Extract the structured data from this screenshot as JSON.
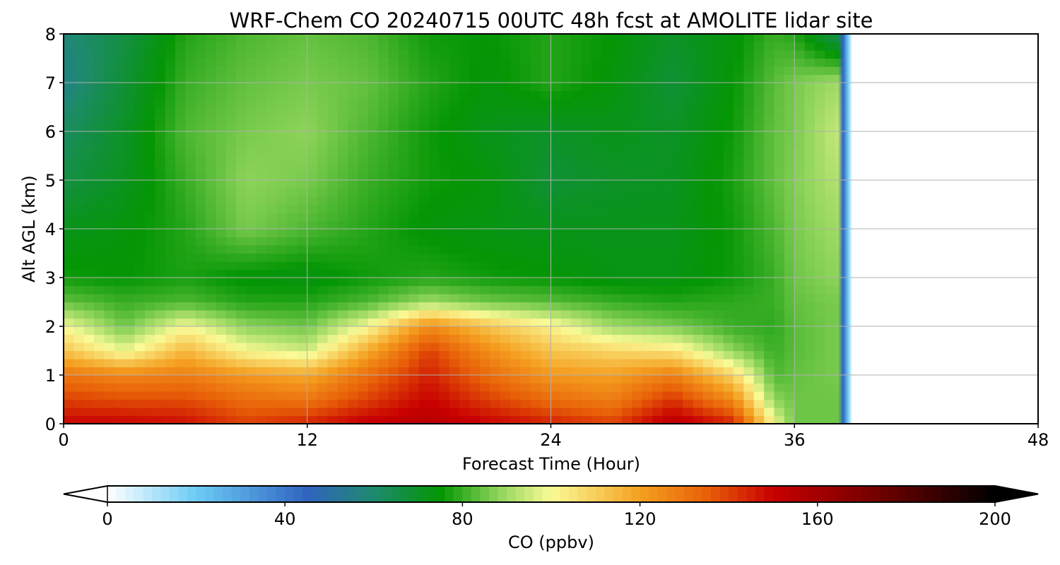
{
  "chart_data": {
    "type": "heatmap",
    "title": "WRF-Chem CO  20240715 00UTC 48h fcst at AMOLITE lidar site",
    "xlabel": "Forecast Time (Hour)",
    "ylabel": "Alt AGL (km)",
    "xlim": [
      0,
      48
    ],
    "ylim": [
      0,
      8
    ],
    "x_ticks": [
      0,
      12,
      24,
      36,
      48
    ],
    "y_ticks": [
      0,
      1,
      2,
      3,
      4,
      5,
      6,
      7,
      8
    ],
    "grid": true,
    "data_end_hour": 38.5,
    "x": [
      0,
      3,
      6,
      9,
      12,
      15,
      18,
      21,
      24,
      27,
      30,
      33,
      35,
      36,
      38
    ],
    "y": [
      0,
      0.5,
      1,
      1.5,
      2,
      2.5,
      3,
      4,
      5,
      6,
      7,
      8
    ],
    "values": [
      [
        150,
        150,
        148,
        140,
        145,
        152,
        155,
        150,
        145,
        140,
        155,
        145,
        100,
        85,
        85
      ],
      [
        140,
        138,
        138,
        132,
        130,
        140,
        150,
        140,
        132,
        128,
        142,
        125,
        88,
        85,
        85
      ],
      [
        130,
        126,
        128,
        122,
        118,
        132,
        145,
        132,
        122,
        120,
        128,
        108,
        82,
        84,
        86
      ],
      [
        112,
        98,
        115,
        100,
        95,
        118,
        140,
        124,
        112,
        108,
        105,
        88,
        80,
        83,
        86
      ],
      [
        100,
        85,
        100,
        88,
        85,
        100,
        125,
        112,
        102,
        90,
        86,
        80,
        79,
        83,
        86
      ],
      [
        84,
        80,
        82,
        78,
        78,
        82,
        90,
        85,
        83,
        80,
        78,
        79,
        80,
        84,
        86
      ],
      [
        76,
        75,
        77,
        74,
        73,
        76,
        78,
        76,
        75,
        73,
        73,
        76,
        80,
        85,
        88
      ],
      [
        72,
        74,
        78,
        86,
        82,
        78,
        74,
        73,
        72,
        72,
        72,
        76,
        82,
        86,
        90
      ],
      [
        66,
        71,
        80,
        88,
        86,
        80,
        76,
        74,
        68,
        70,
        71,
        77,
        84,
        87,
        92
      ],
      [
        62,
        70,
        82,
        86,
        88,
        82,
        76,
        72,
        70,
        72,
        70,
        76,
        84,
        86,
        94
      ],
      [
        56,
        68,
        80,
        84,
        86,
        84,
        78,
        74,
        78,
        74,
        68,
        75,
        83,
        86,
        90
      ],
      [
        58,
        66,
        78,
        82,
        84,
        82,
        76,
        75,
        78,
        75,
        70,
        74,
        80,
        78,
        64
      ]
    ],
    "colorbar": {
      "label": "CO  (ppbv)",
      "min": 0,
      "max": 200,
      "ticks": [
        0,
        40,
        80,
        120,
        160,
        200
      ],
      "extend": "both",
      "color_stops": [
        {
          "value": 0,
          "color": "#ffffff"
        },
        {
          "value": 20,
          "color": "#6ccbf5"
        },
        {
          "value": 45,
          "color": "#3064c0"
        },
        {
          "value": 60,
          "color": "#1e8a6e"
        },
        {
          "value": 75,
          "color": "#049604"
        },
        {
          "value": 88,
          "color": "#8ed45a"
        },
        {
          "value": 100,
          "color": "#fafa96"
        },
        {
          "value": 120,
          "color": "#f5a020"
        },
        {
          "value": 135,
          "color": "#e86008"
        },
        {
          "value": 150,
          "color": "#c80000"
        },
        {
          "value": 172,
          "color": "#780000"
        },
        {
          "value": 200,
          "color": "#000000"
        }
      ]
    }
  }
}
